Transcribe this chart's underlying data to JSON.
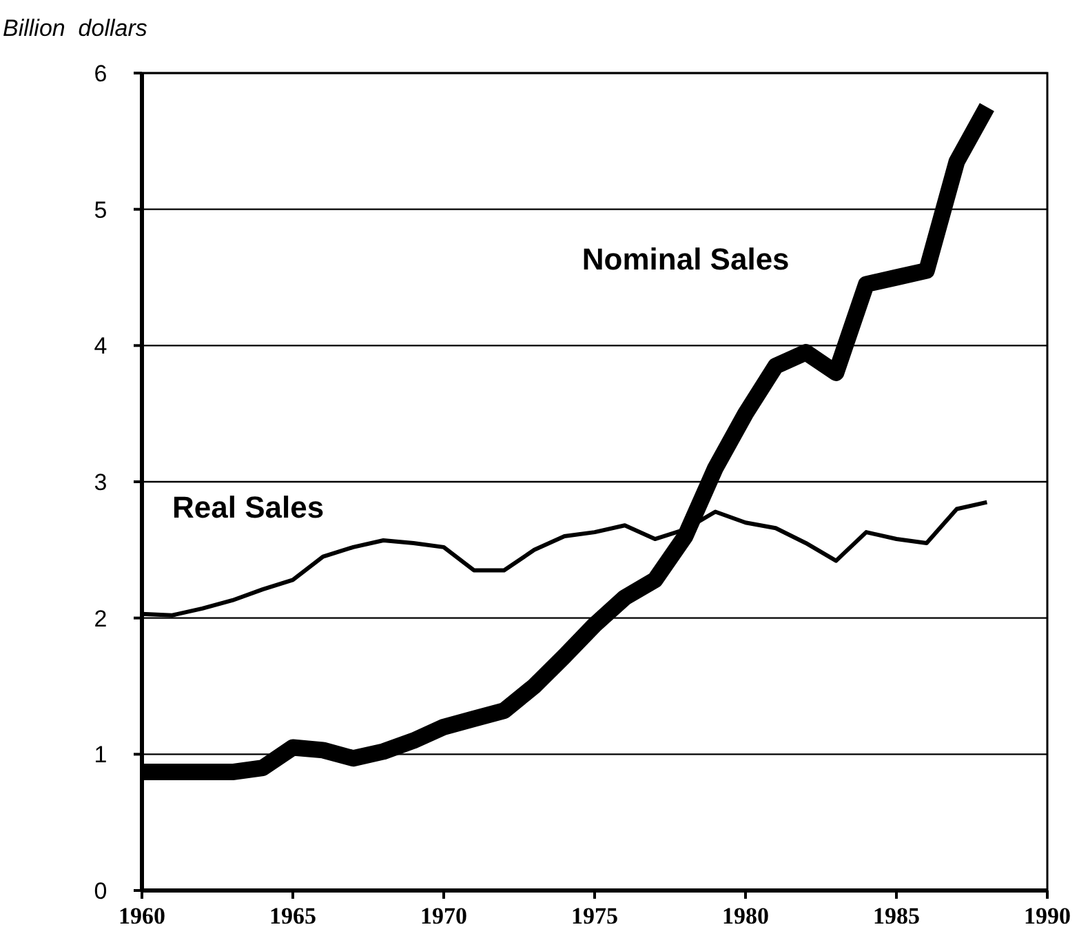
{
  "chart_data": {
    "type": "line",
    "ylabel": "Billion  dollars",
    "x": [
      1960,
      1961,
      1962,
      1963,
      1964,
      1965,
      1966,
      1967,
      1968,
      1969,
      1970,
      1971,
      1972,
      1973,
      1974,
      1975,
      1976,
      1977,
      1978,
      1979,
      1980,
      1981,
      1982,
      1983,
      1984,
      1985,
      1986,
      1987,
      1988
    ],
    "series": [
      {
        "name": "Nominal Sales",
        "color": "#000000",
        "values": [
          0.87,
          0.87,
          0.87,
          0.87,
          0.9,
          1.05,
          1.03,
          0.97,
          1.02,
          1.1,
          1.2,
          1.26,
          1.32,
          1.5,
          1.72,
          1.95,
          2.15,
          2.28,
          2.6,
          3.1,
          3.5,
          3.85,
          3.95,
          3.8,
          4.45,
          4.5,
          4.55,
          5.35,
          5.75
        ]
      },
      {
        "name": "Real Sales",
        "color": "#000000",
        "values": [
          2.03,
          2.02,
          2.07,
          2.13,
          2.21,
          2.28,
          2.45,
          2.52,
          2.57,
          2.55,
          2.52,
          2.35,
          2.35,
          2.5,
          2.6,
          2.63,
          2.68,
          2.58,
          2.65,
          2.78,
          2.7,
          2.66,
          2.55,
          2.42,
          2.63,
          2.58,
          2.55,
          2.8,
          2.85
        ]
      }
    ],
    "xlim": [
      1960,
      1990
    ],
    "xticks": [
      1960,
      1965,
      1970,
      1975,
      1980,
      1985,
      1990
    ],
    "ylim": [
      0,
      6
    ],
    "yticks": [
      0,
      1,
      2,
      3,
      4,
      5,
      6
    ],
    "grid": "y",
    "line_style": "solid"
  }
}
